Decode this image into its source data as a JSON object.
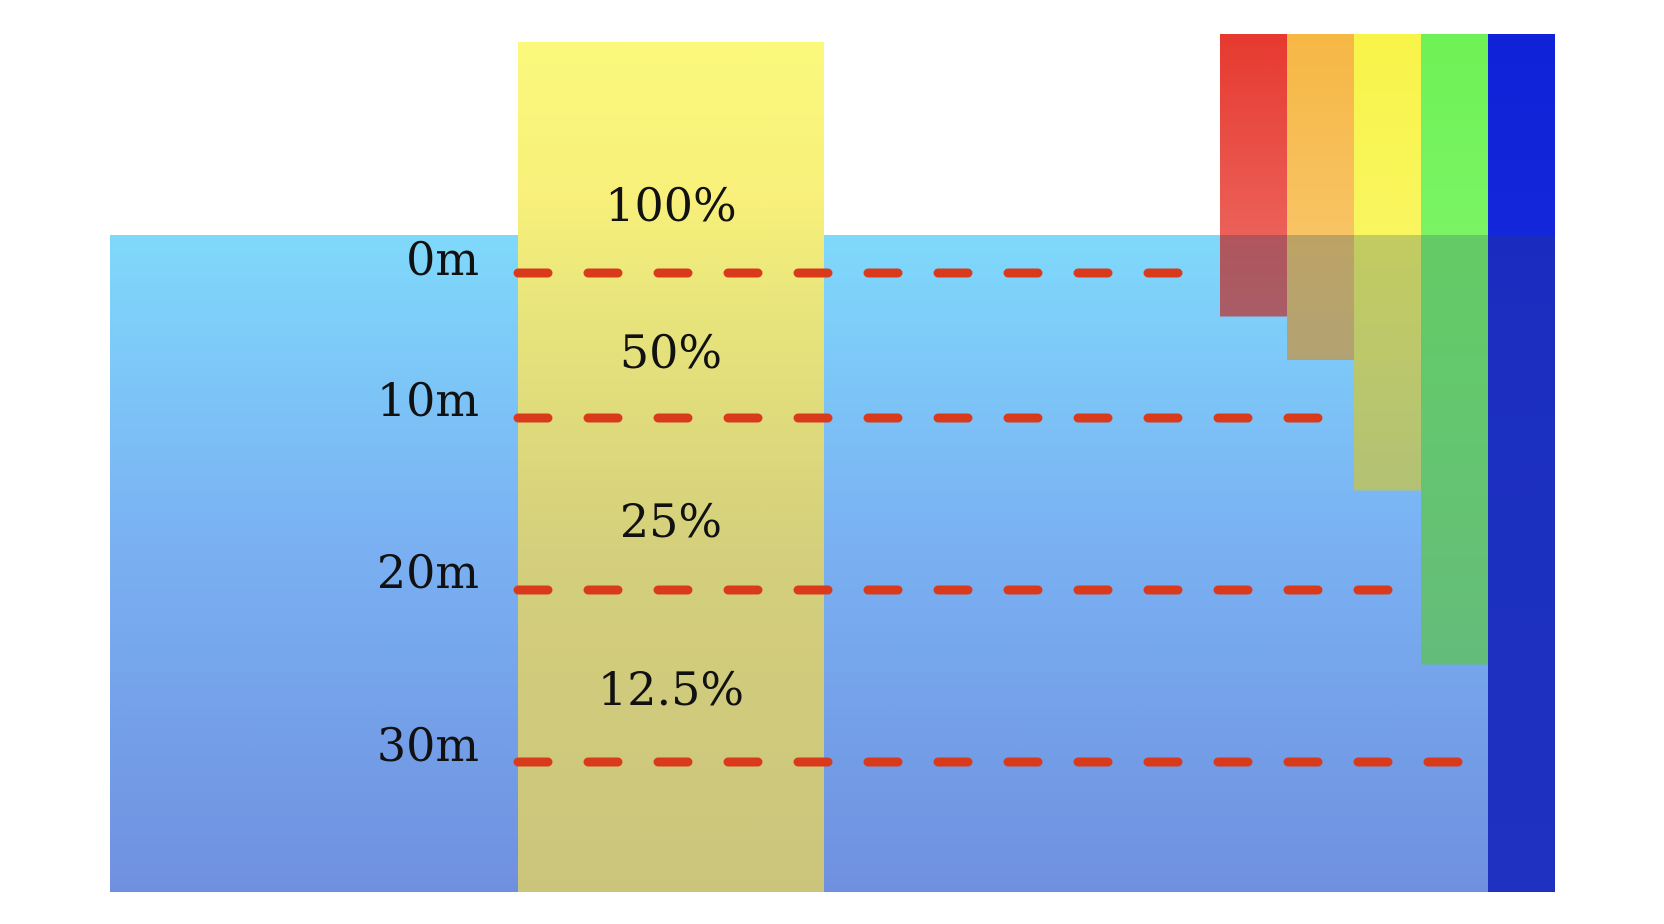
{
  "depth_labels": [
    "0m",
    "10m",
    "20m",
    "30m"
  ],
  "intensity_labels": [
    "100%",
    "50%",
    "25%",
    "12.5%"
  ],
  "colors": {
    "water_top": "#7fd9fb",
    "water_bottom": "#6f90df",
    "light_column": "#f8f07a",
    "dash": "#d93a1c",
    "red_band": "#e6392f",
    "orange_band": "#f6b744",
    "yellow_band": "#f8f449",
    "green_band": "#6ef255",
    "blue_band": "#0f22d8"
  },
  "spectrum_bands": [
    {
      "color_name": "red",
      "penetration_depth_m": 3
    },
    {
      "color_name": "orange",
      "penetration_depth_m": 6
    },
    {
      "color_name": "yellow",
      "penetration_depth_m": 15
    },
    {
      "color_name": "green",
      "penetration_depth_m": 27
    },
    {
      "color_name": "blue",
      "penetration_depth_m": 44
    }
  ]
}
